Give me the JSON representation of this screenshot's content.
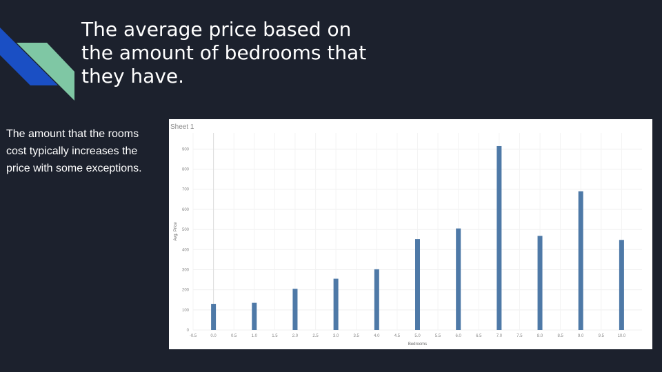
{
  "slide": {
    "title": "The average price based on the amount of bedrooms that they have.",
    "body": "The amount that the rooms cost typically increases the price with some exceptions.",
    "colors": {
      "background": "#1c212d",
      "accent_blue": "#1a4fc4",
      "accent_green": "#7fc7a4",
      "bar": "#4e79a7"
    }
  },
  "chart_data": {
    "type": "bar",
    "sheet_label": "Sheet 1",
    "xlabel": "Bedrooms",
    "ylabel": "Avg. Price",
    "x": [
      0.0,
      1.0,
      2.0,
      3.0,
      4.0,
      5.0,
      6.0,
      7.0,
      8.0,
      9.0,
      10.0
    ],
    "values": [
      130,
      135,
      205,
      255,
      302,
      452,
      505,
      915,
      468,
      690,
      448
    ],
    "xlim": [
      -0.5,
      10.5
    ],
    "ylim": [
      0,
      980
    ],
    "x_ticks": [
      "-0.5",
      "0.0",
      "0.5",
      "1.0",
      "1.5",
      "2.0",
      "2.5",
      "3.0",
      "3.5",
      "4.0",
      "4.5",
      "5.0",
      "5.5",
      "6.0",
      "6.5",
      "7.0",
      "7.5",
      "8.0",
      "8.5",
      "9.0",
      "9.5",
      "10.0"
    ],
    "y_ticks": [
      0,
      100,
      200,
      300,
      400,
      500,
      600,
      700,
      800,
      900
    ],
    "grid": true
  }
}
